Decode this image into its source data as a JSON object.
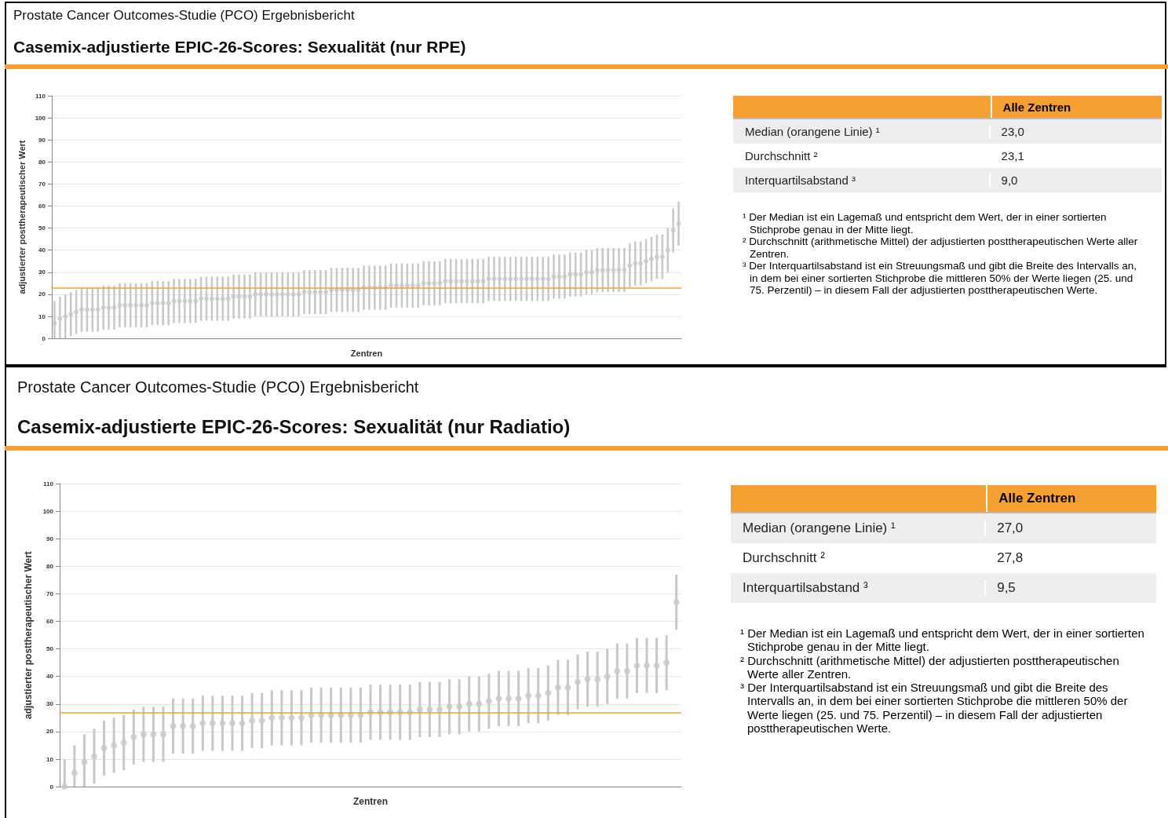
{
  "chart_data": [
    {
      "type": "scatter",
      "subtitle": "Prostate Cancer Outcomes-Studie (PCO) Ergebnisbericht",
      "title": "Casemix-adjustierte EPIC-26-Scores: Sexualität (nur RPE)",
      "xlabel": "Zentren",
      "ylabel": "adjustierter posttherapeutischer Wert",
      "ylim": [
        0,
        110
      ],
      "yticks": [
        0,
        10,
        20,
        30,
        40,
        50,
        60,
        70,
        80,
        90,
        100,
        110
      ],
      "grid": "y",
      "marker": "circle",
      "categories": [
        null,
        null,
        null,
        null,
        null,
        null,
        null,
        null,
        null,
        null,
        null,
        null,
        null,
        null,
        null,
        null,
        null,
        null,
        null,
        null,
        null,
        null,
        null,
        null,
        null,
        null,
        null,
        null,
        null,
        null,
        null,
        null,
        null,
        null,
        null,
        null,
        null,
        null,
        null,
        null,
        null,
        null,
        null,
        null,
        null,
        null,
        null,
        null,
        null,
        null,
        null,
        null,
        null,
        null,
        null,
        null,
        null,
        null,
        null,
        null,
        null,
        null,
        null,
        null,
        null,
        null,
        null,
        null,
        null,
        null,
        null,
        null,
        null,
        null,
        null,
        null,
        null,
        null,
        null,
        null,
        null,
        null,
        null,
        null,
        null,
        null,
        null,
        null,
        null,
        null,
        null,
        null,
        null,
        null,
        null,
        null,
        null,
        null,
        null,
        null,
        null,
        null,
        null,
        null,
        null,
        null,
        null,
        null,
        null,
        null,
        null,
        null,
        null,
        null,
        null,
        null
      ],
      "series": [
        {
          "color": "#c8c8c8",
          "values": [
            7,
            9,
            10,
            11,
            12,
            13,
            13,
            13,
            13,
            14,
            14,
            14,
            15,
            15,
            15,
            15,
            15,
            15,
            16,
            16,
            16,
            16,
            17,
            17,
            17,
            17,
            17,
            18,
            18,
            18,
            18,
            18,
            18,
            19,
            19,
            19,
            19,
            20,
            20,
            20,
            20,
            20,
            20,
            20,
            20,
            20,
            21,
            21,
            21,
            21,
            21,
            22,
            22,
            22,
            22,
            22,
            22,
            23,
            23,
            23,
            23,
            23,
            24,
            24,
            24,
            24,
            24,
            24,
            25,
            25,
            25,
            25,
            26,
            26,
            26,
            26,
            26,
            26,
            26,
            26,
            27,
            27,
            27,
            27,
            27,
            27,
            27,
            27,
            27,
            27,
            27,
            27,
            28,
            28,
            28,
            29,
            29,
            29,
            30,
            30,
            31,
            31,
            31,
            31,
            31,
            31,
            33,
            34,
            34,
            35,
            36,
            37,
            37,
            40,
            49,
            52
          ],
          "errors": [
            [
              0,
              17
            ],
            [
              0,
              19
            ],
            10,
            10,
            10,
            10,
            10,
            10,
            10,
            10,
            10,
            10,
            10,
            10,
            10,
            10,
            10,
            10,
            10,
            10,
            10,
            10,
            10,
            10,
            10,
            10,
            10,
            10,
            10,
            10,
            10,
            10,
            10,
            10,
            10,
            10,
            10,
            10,
            10,
            10,
            10,
            10,
            10,
            10,
            10,
            10,
            10,
            10,
            10,
            10,
            10,
            10,
            10,
            10,
            10,
            10,
            10,
            10,
            10,
            10,
            10,
            10,
            10,
            10,
            10,
            10,
            10,
            10,
            10,
            10,
            10,
            10,
            10,
            10,
            10,
            10,
            10,
            10,
            10,
            10,
            10,
            10,
            10,
            10,
            10,
            10,
            10,
            10,
            10,
            10,
            10,
            10,
            10,
            10,
            10,
            10,
            10,
            10,
            10,
            10,
            10,
            10,
            10,
            10,
            10,
            10,
            10,
            10,
            10,
            10,
            10,
            10,
            10,
            10,
            10,
            10
          ]
        }
      ],
      "ref_lines": [
        {
          "axis": "y",
          "value": 23,
          "color": "#f5a030"
        }
      ]
    },
    {
      "type": "other",
      "title": "Alle Zentren",
      "categories": [
        "Median (orangene Linie) ¹",
        "Durchschnitt ²",
        "Interquartilsabstand ³"
      ],
      "value_labels": [
        "23,0",
        "23,1",
        "9,0"
      ],
      "annotations": [
        "¹ Der Median ist ein Lagemaß und entspricht dem Wert, der in einer sortierten Stichprobe genau in der Mitte liegt.",
        "² Durchschnitt (arithmetische Mittel) der adjustierten posttherapeutischen Werte aller Zentren.",
        "³ Der Interquartilsabstand ist ein Streuungsmaß und gibt die Breite des Intervalls an, in dem bei einer sortierten Stichprobe die mittleren 50% der Werte liegen (25. und 75. Perzentil) – in diesem Fall der adjustierten posttherapeutischen Werte."
      ]
    },
    {
      "type": "scatter",
      "subtitle": "Prostate Cancer Outcomes-Studie (PCO) Ergebnisbericht",
      "title": "Casemix-adjustierte EPIC-26-Scores: Sexualität (nur Radiatio)",
      "xlabel": "Zentren",
      "ylabel": "adjustierter posttherapeutischer Wert",
      "ylim": [
        0,
        110
      ],
      "yticks": [
        0,
        10,
        20,
        30,
        40,
        50,
        60,
        70,
        80,
        90,
        100,
        110
      ],
      "grid": "y",
      "marker": "circle",
      "categories": [
        null,
        null,
        null,
        null,
        null,
        null,
        null,
        null,
        null,
        null,
        null,
        null,
        null,
        null,
        null,
        null,
        null,
        null,
        null,
        null,
        null,
        null,
        null,
        null,
        null,
        null,
        null,
        null,
        null,
        null,
        null,
        null,
        null,
        null,
        null,
        null,
        null,
        null,
        null,
        null,
        null,
        null,
        null,
        null,
        null,
        null,
        null,
        null,
        null,
        null,
        null,
        null,
        null,
        null,
        null,
        null,
        null,
        null,
        null,
        null,
        null,
        null,
        null
      ],
      "series": [
        {
          "color": "#c8c8c8",
          "values": [
            0,
            5,
            9,
            11,
            14,
            15,
            16,
            18,
            19,
            19,
            19,
            22,
            22,
            22,
            23,
            23,
            23,
            23,
            23,
            24,
            24,
            25,
            25,
            25,
            25,
            26,
            26,
            26,
            26,
            26,
            26,
            27,
            27,
            27,
            27,
            27,
            28,
            28,
            28,
            29,
            29,
            30,
            30,
            31,
            32,
            32,
            32,
            33,
            33,
            34,
            36,
            36,
            38,
            39,
            39,
            40,
            42,
            42,
            44,
            44,
            44,
            45,
            67
          ],
          "errors": [
            [
              0,
              10
            ],
            [
              0,
              15
            ],
            [
              0,
              19
            ],
            10,
            10,
            10,
            10,
            10,
            10,
            10,
            10,
            10,
            10,
            10,
            10,
            10,
            10,
            10,
            10,
            10,
            10,
            10,
            10,
            10,
            10,
            10,
            10,
            10,
            10,
            10,
            10,
            10,
            10,
            10,
            10,
            10,
            10,
            10,
            10,
            10,
            10,
            10,
            10,
            10,
            10,
            10,
            10,
            10,
            10,
            10,
            10,
            10,
            10,
            10,
            10,
            10,
            10,
            10,
            10,
            10,
            10,
            10,
            10
          ]
        }
      ],
      "ref_lines": [
        {
          "axis": "y",
          "value": 27,
          "color": "#f5a030"
        }
      ]
    },
    {
      "type": "other",
      "title": "Alle Zentren",
      "categories": [
        "Median (orangene Linie) ¹",
        "Durchschnitt ²",
        "Interquartilsabstand ³"
      ],
      "value_labels": [
        "27,0",
        "27,8",
        "9,5"
      ],
      "annotations": [
        "¹ Der Median ist ein Lagemaß und entspricht dem Wert, der in einer sortierten Stichprobe genau in der Mitte liegt.",
        "² Durchschnitt (arithmetische Mittel) der adjustierten posttherapeutischen Werte aller Zentren.",
        "³ Der Interquartilsabstand ist ein Streuungsmaß und gibt die Breite des Intervalls an, in dem bei einer sortierten Stichprobe die mittleren 50% der Werte liegen (25. und 75. Perzentil) – in diesem Fall der adjustierten posttherapeutischen Werte."
      ]
    }
  ]
}
